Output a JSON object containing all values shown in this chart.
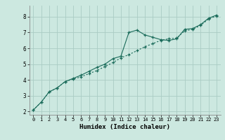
{
  "title": "",
  "xlabel": "Humidex (Indice chaleur)",
  "ylabel": "",
  "xlim": [
    -0.5,
    23.5
  ],
  "ylim": [
    1.8,
    8.7
  ],
  "xticks": [
    0,
    1,
    2,
    3,
    4,
    5,
    6,
    7,
    8,
    9,
    10,
    11,
    12,
    13,
    14,
    15,
    16,
    17,
    18,
    19,
    20,
    21,
    22,
    23
  ],
  "yticks": [
    2,
    3,
    4,
    5,
    6,
    7,
    8
  ],
  "background_color": "#cce8e0",
  "grid_color": "#aaccC4",
  "line_color": "#1a6b5a",
  "line1_x": [
    0,
    1,
    2,
    3,
    4,
    5,
    6,
    7,
    8,
    9,
    10,
    11,
    12,
    13,
    14,
    15,
    16,
    17,
    18,
    19,
    20,
    21,
    22,
    23
  ],
  "line1_y": [
    2.1,
    2.6,
    3.25,
    3.5,
    3.9,
    4.1,
    4.3,
    4.55,
    4.8,
    5.0,
    5.35,
    5.5,
    7.0,
    7.15,
    6.85,
    6.7,
    6.55,
    6.5,
    6.6,
    7.2,
    7.25,
    7.5,
    7.9,
    8.1
  ],
  "line2_x": [
    0,
    1,
    2,
    3,
    4,
    5,
    6,
    7,
    8,
    9,
    10,
    11,
    12,
    13,
    14,
    15,
    16,
    17,
    18,
    19,
    20,
    21,
    22,
    23
  ],
  "line2_y": [
    2.1,
    2.6,
    3.25,
    3.5,
    3.9,
    4.05,
    4.2,
    4.4,
    4.6,
    4.85,
    5.1,
    5.4,
    5.6,
    5.85,
    6.1,
    6.3,
    6.5,
    6.6,
    6.65,
    7.1,
    7.2,
    7.45,
    7.85,
    8.05
  ],
  "xlabel_fontsize": 6.5,
  "tick_fontsize": 5,
  "linewidth": 0.8,
  "markersize": 3.5
}
